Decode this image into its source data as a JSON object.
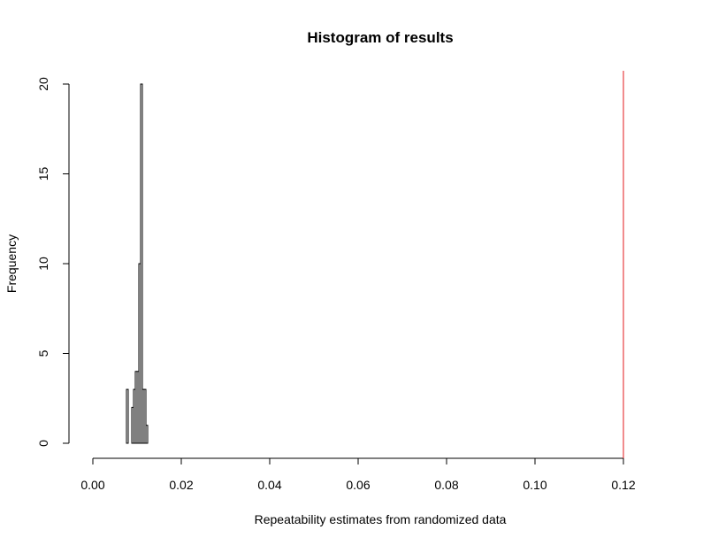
{
  "chart_data": {
    "type": "bar",
    "title": "Histogram of results",
    "xlabel": "Repeatability estimates from randomized data",
    "ylabel": "Frequency",
    "xlim": [
      0,
      0.12
    ],
    "ylim": [
      0,
      20
    ],
    "x_ticks": [
      "0.00",
      "0.02",
      "0.04",
      "0.06",
      "0.08",
      "0.10",
      "0.12"
    ],
    "y_ticks": [
      "0",
      "5",
      "10",
      "15",
      "20"
    ],
    "bin_width": 0.0004,
    "bins": [
      {
        "x0": 0.0076,
        "count": 3
      },
      {
        "x0": 0.008,
        "count": 0
      },
      {
        "x0": 0.0084,
        "count": 0
      },
      {
        "x0": 0.0088,
        "count": 2
      },
      {
        "x0": 0.0092,
        "count": 3
      },
      {
        "x0": 0.0096,
        "count": 4
      },
      {
        "x0": 0.01,
        "count": 4
      },
      {
        "x0": 0.0104,
        "count": 10
      },
      {
        "x0": 0.0108,
        "count": 20
      },
      {
        "x0": 0.0112,
        "count": 3
      },
      {
        "x0": 0.0116,
        "count": 3
      },
      {
        "x0": 0.012,
        "count": 1
      }
    ],
    "observed_value": 0.12,
    "observed_line_color": "#e31a1c",
    "grid": false
  }
}
